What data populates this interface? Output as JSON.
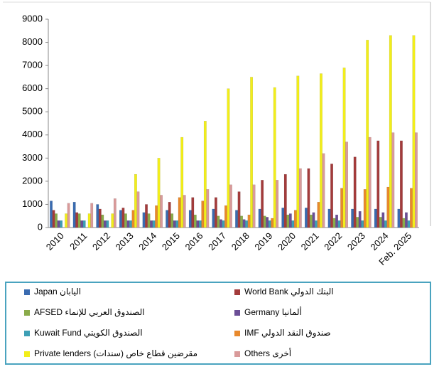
{
  "chart_data": {
    "type": "bar",
    "categories": [
      "2010",
      "2011",
      "2012",
      "2013",
      "2014",
      "2015",
      "2016",
      "2017",
      "2018",
      "2019",
      "2020",
      "2021",
      "2022",
      "2023",
      "2024",
      "Feb. 2025"
    ],
    "series": [
      {
        "name": "Japan اليابان",
        "color": "#3a6bb0",
        "values": [
          1150,
          1100,
          1000,
          750,
          650,
          750,
          750,
          800,
          750,
          800,
          850,
          850,
          800,
          800,
          800,
          800
        ]
      },
      {
        "name": "World Bank البنك الدولي",
        "color": "#a33b3b",
        "values": [
          750,
          650,
          800,
          850,
          1000,
          1100,
          1300,
          1300,
          1550,
          2050,
          2300,
          2550,
          2750,
          3050,
          3750,
          3750
        ]
      },
      {
        "name": "AFSED الصندوق العربي للإنماء",
        "color": "#8aab4a",
        "values": [
          600,
          600,
          550,
          600,
          600,
          600,
          550,
          500,
          500,
          500,
          550,
          550,
          400,
          450,
          450,
          400
        ]
      },
      {
        "name": "Germany ألمانيا",
        "color": "#6b4e96",
        "values": [
          300,
          300,
          300,
          300,
          300,
          300,
          300,
          350,
          350,
          450,
          600,
          650,
          550,
          700,
          650,
          650
        ]
      },
      {
        "name": "Kuwait Fund الصندوق الكويتي",
        "color": "#3d9fb5",
        "values": [
          300,
          300,
          300,
          300,
          300,
          300,
          300,
          300,
          300,
          300,
          300,
          300,
          300,
          300,
          300,
          300
        ]
      },
      {
        "name": "IMF صندوق النقد الدولي",
        "color": "#e8892c",
        "values": [
          0,
          0,
          0,
          750,
          950,
          1300,
          1150,
          950,
          550,
          400,
          750,
          1100,
          1700,
          1650,
          1750,
          1700
        ]
      },
      {
        "name": "Private lenders (سندات) مقرضين قطاع خاص",
        "color": "#f2ee1a",
        "values": [
          600,
          600,
          600,
          2300,
          3000,
          3900,
          4600,
          6000,
          6500,
          6050,
          6550,
          6650,
          6900,
          8100,
          8300,
          8300
        ]
      },
      {
        "name": "Others أخرى",
        "color": "#d99a9a",
        "values": [
          1050,
          1050,
          1250,
          1550,
          1400,
          1400,
          1650,
          1850,
          1850,
          2050,
          2550,
          3200,
          3700,
          3900,
          4100,
          4100
        ]
      }
    ],
    "ylim": [
      0,
      9000
    ],
    "yticks": [
      0,
      1000,
      2000,
      3000,
      4000,
      5000,
      6000,
      7000,
      8000,
      9000
    ]
  }
}
